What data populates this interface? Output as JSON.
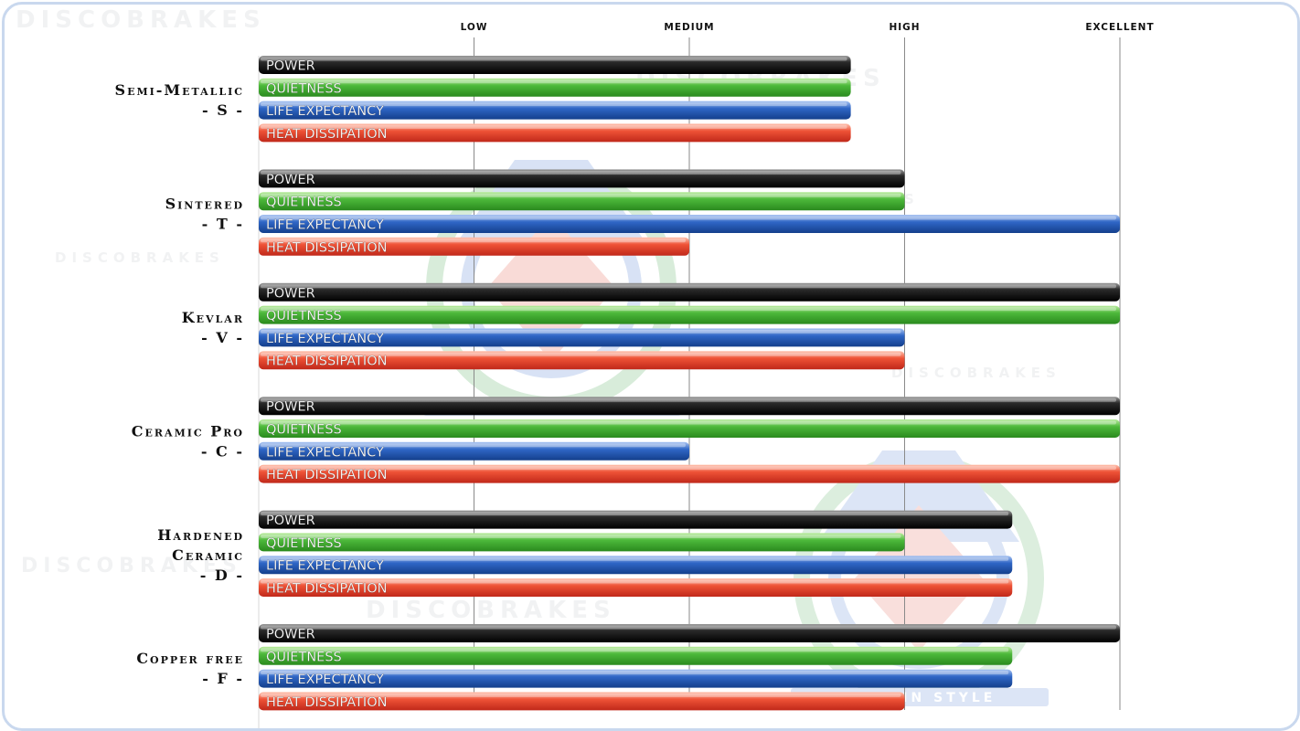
{
  "watermark_text": "DISCOBRAKES",
  "emblem_text": "STOP IN STYLE",
  "colors": {
    "power": "#111111",
    "quietness": "#3aa52c",
    "life_expectancy": "#1e57b5",
    "heat_dissipation": "#e0402a",
    "gridline": "#8a8a8a",
    "frame": "#c9d8ee"
  },
  "chart_data": {
    "type": "bar",
    "orientation": "horizontal",
    "levels": [
      "LOW",
      "MEDIUM",
      "HIGH",
      "EXCELLENT"
    ],
    "metrics": [
      "POWER",
      "QUIETNESS",
      "LIFE EXPECTANCY",
      "HEAT DISSIPATION"
    ],
    "xlim": [
      0,
      4
    ],
    "groups": [
      {
        "name_lines": [
          "Semi-Metallic",
          "- S -"
        ],
        "values": [
          2.75,
          2.75,
          2.75,
          2.75
        ]
      },
      {
        "name_lines": [
          "Sintered",
          "- T -"
        ],
        "values": [
          3,
          3,
          4,
          2
        ]
      },
      {
        "name_lines": [
          "Kevlar",
          "- V -"
        ],
        "values": [
          4,
          4,
          3,
          3
        ]
      },
      {
        "name_lines": [
          "Ceramic Pro",
          "- C -"
        ],
        "values": [
          4,
          4,
          2,
          4
        ]
      },
      {
        "name_lines": [
          "Hardened",
          "Ceramic",
          "- D -"
        ],
        "values": [
          3.5,
          3,
          3.5,
          3.5
        ]
      },
      {
        "name_lines": [
          "Copper free",
          "- F -"
        ],
        "values": [
          4,
          3.5,
          3.5,
          3
        ]
      }
    ]
  }
}
